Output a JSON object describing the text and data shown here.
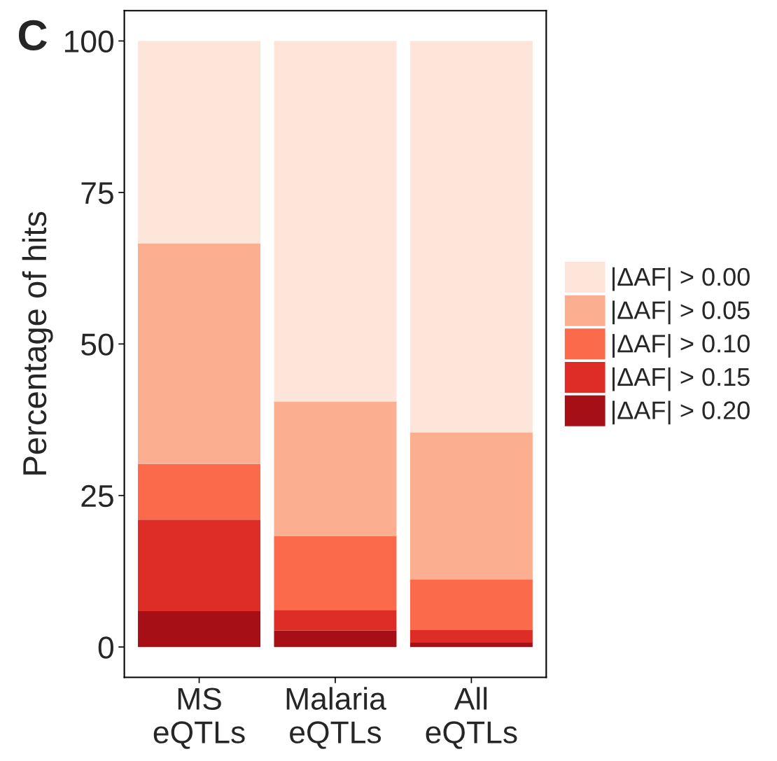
{
  "chart_data": {
    "type": "bar",
    "stacked": true,
    "ylabel": "Percentage of hits",
    "annotations": [
      "C"
    ],
    "categories": [
      "MS\neQTLs",
      "Malaria\neQTLs",
      "All\neQTLs"
    ],
    "series": [
      {
        "name": "|ΔAF| > 0.20",
        "color": "#a50f15",
        "values": [
          5.9,
          2.7,
          0.7
        ]
      },
      {
        "name": "|ΔAF| > 0.15",
        "color": "#de2d26",
        "values": [
          15.1,
          3.4,
          2.1
        ]
      },
      {
        "name": "|ΔAF| > 0.10",
        "color": "#fb6a4a",
        "values": [
          9.2,
          12.2,
          8.3
        ]
      },
      {
        "name": "|ΔAF| > 0.05",
        "color": "#fcae91",
        "values": [
          36.4,
          22.2,
          24.3
        ]
      },
      {
        "name": "|ΔAF| > 0.00",
        "color": "#fee5d9",
        "values": [
          33.4,
          59.5,
          64.6
        ]
      }
    ],
    "ylim": [
      -5,
      105
    ],
    "yticks": [
      0,
      25,
      50,
      75,
      100
    ],
    "grid": false,
    "legend": "right"
  }
}
